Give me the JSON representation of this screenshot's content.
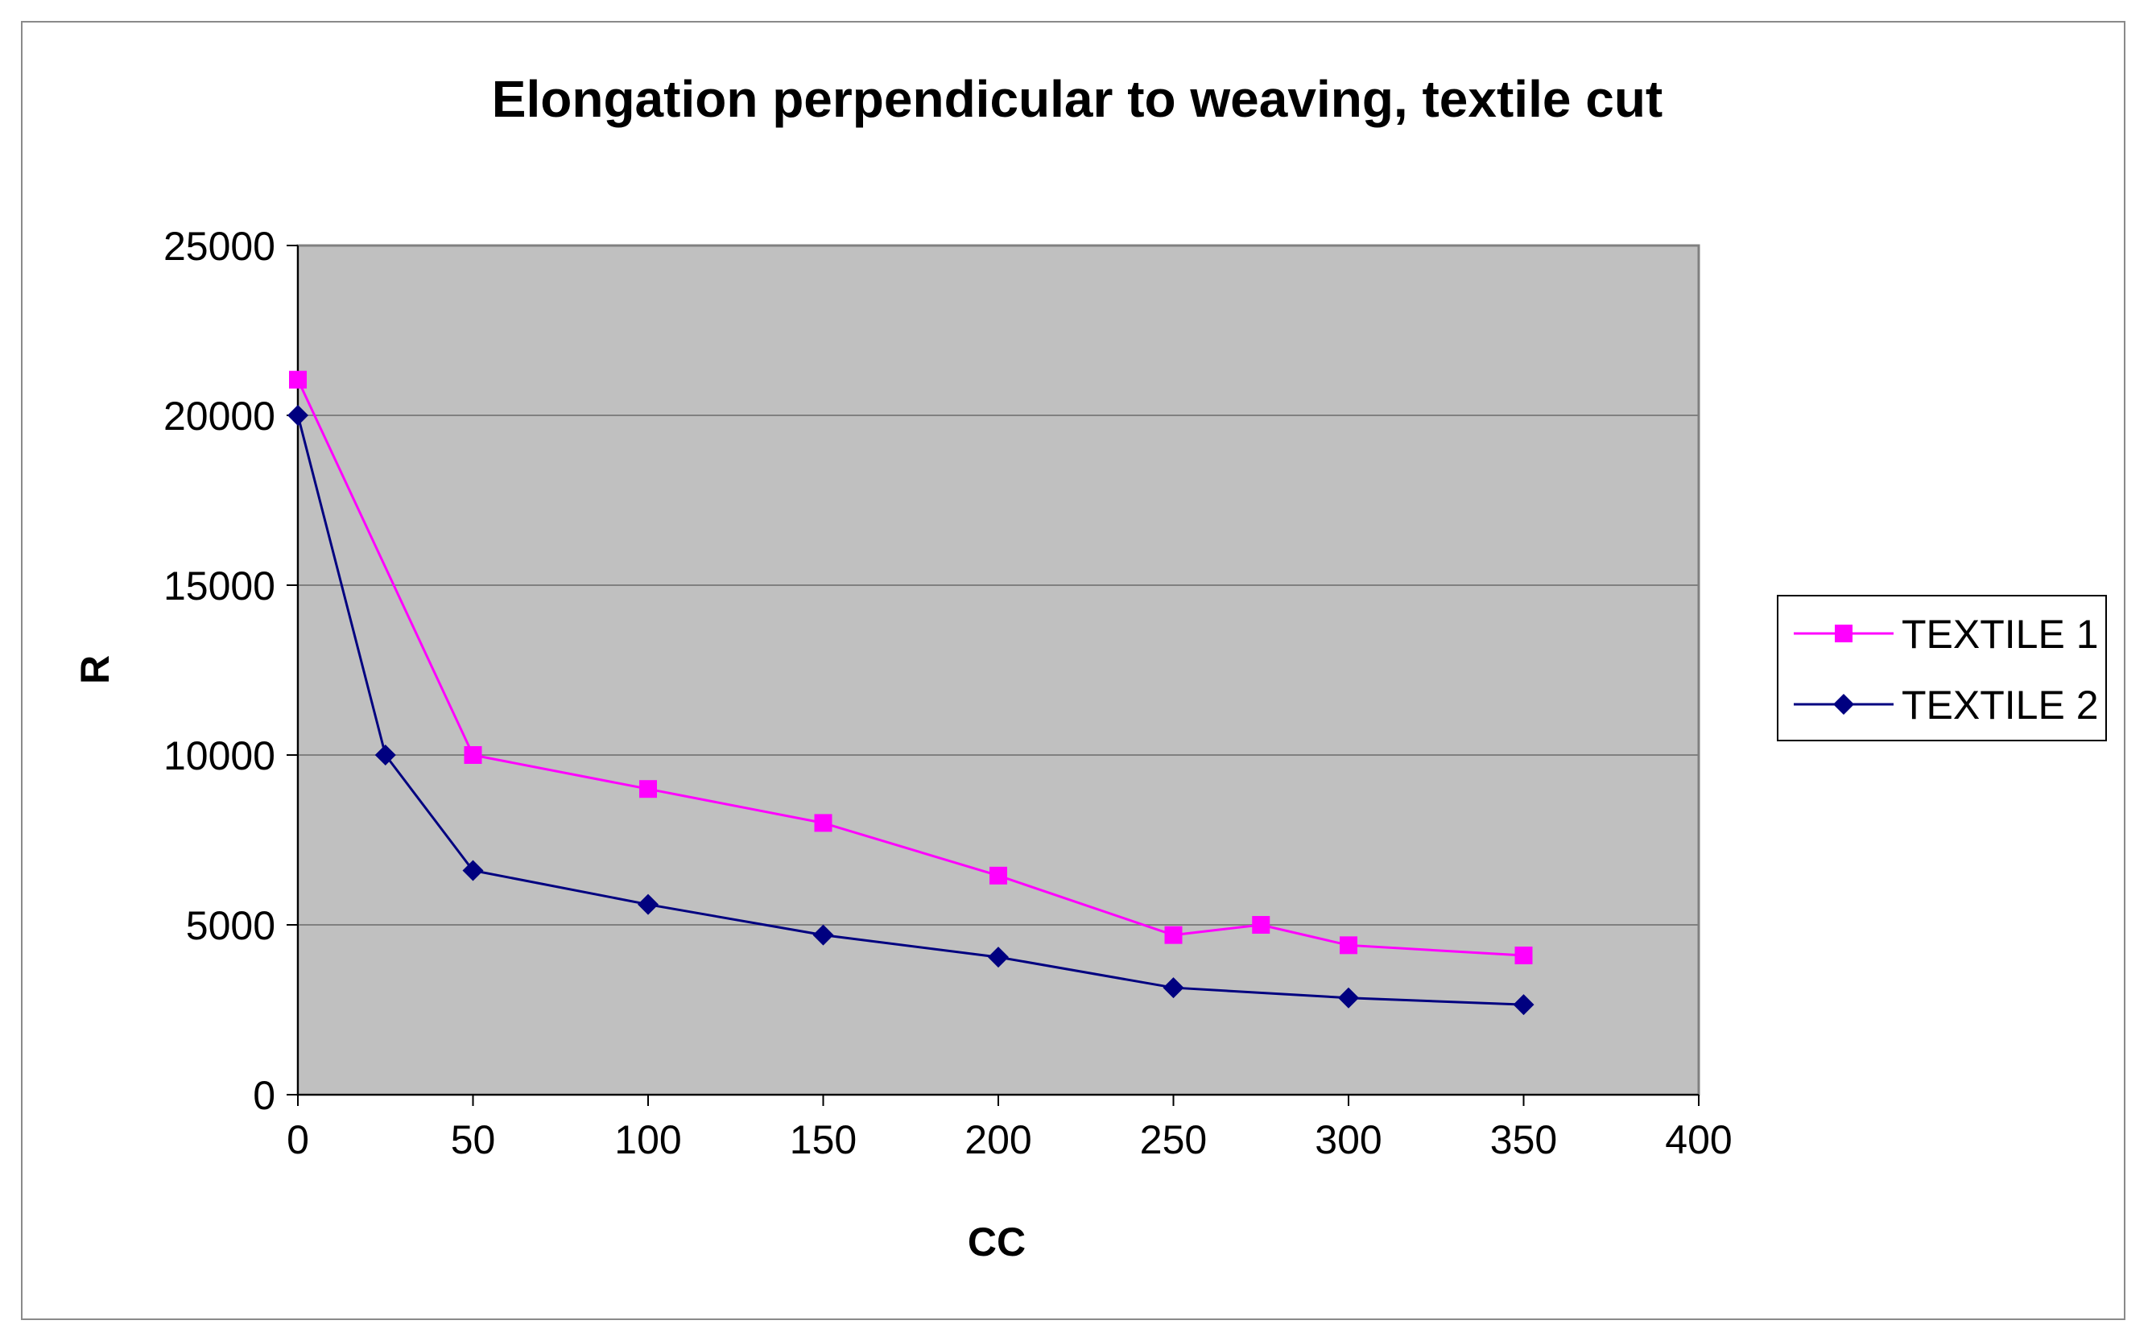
{
  "chart_data": {
    "type": "line",
    "title": "Elongation perpendicular to weaving, textile cut",
    "xlabel": "CC",
    "ylabel": "R",
    "xlim": [
      0,
      400
    ],
    "ylim": [
      0,
      25000
    ],
    "xticks": [
      "0",
      "50",
      "100",
      "150",
      "200",
      "250",
      "300",
      "350",
      "400"
    ],
    "yticks": [
      "0",
      "5000",
      "10000",
      "15000",
      "20000",
      "25000"
    ],
    "grid": "horizontal",
    "legend_position": "right",
    "plot_background": "#c0c0c0",
    "series": [
      {
        "name": "TEXTILE 1",
        "color": "#ff00ff",
        "marker": "square",
        "x": [
          0,
          50,
          100,
          150,
          200,
          250,
          275,
          300,
          350
        ],
        "y": [
          21050,
          10000,
          9000,
          8000,
          6450,
          4700,
          5000,
          4400,
          4100
        ]
      },
      {
        "name": "TEXTILE 2",
        "color": "#000080",
        "marker": "diamond",
        "x": [
          0,
          25,
          50,
          100,
          150,
          200,
          250,
          300,
          350
        ],
        "y": [
          20000,
          10000,
          6600,
          5600,
          4700,
          4050,
          3150,
          2850,
          2650
        ]
      }
    ]
  }
}
